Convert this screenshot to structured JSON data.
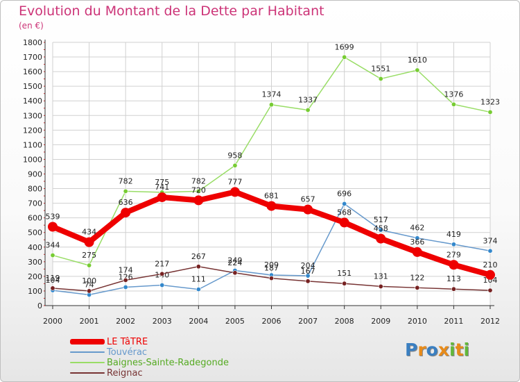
{
  "title": "Evolution du Montant de la Dette par Habitant",
  "unit": "(en €)",
  "logo_letters": [
    {
      "ch": "P",
      "color": "#3a7fc1"
    },
    {
      "ch": "r",
      "color": "#e88b1a"
    },
    {
      "ch": "o",
      "color": "#3a7fc1"
    },
    {
      "ch": "x",
      "color": "#e88b1a"
    },
    {
      "ch": "i",
      "color": "#62b83a"
    },
    {
      "ch": "t",
      "color": "#e88b1a"
    },
    {
      "ch": "i",
      "color": "#62b83a"
    }
  ],
  "chart_data": {
    "type": "line",
    "title": "Evolution du Montant de la Dette par Habitant",
    "ylabel": "(en €)",
    "xlabel": "",
    "ylim": [
      0,
      1800
    ],
    "yticks": [
      0,
      100,
      200,
      300,
      400,
      500,
      600,
      700,
      800,
      900,
      1000,
      1100,
      1200,
      1300,
      1400,
      1500,
      1600,
      1700,
      1800
    ],
    "categories": [
      "2000",
      "2001",
      "2002",
      "2003",
      "2004",
      "2005",
      "2006",
      "2007",
      "2008",
      "2009",
      "2010",
      "2011",
      "2012"
    ],
    "legend_position": "bottom-left",
    "series": [
      {
        "name": "Baignes-Sainte-Radegonde",
        "color": "#99dd66",
        "marker": "#77cc33",
        "values": [
          344,
          275,
          782,
          775,
          782,
          958,
          1374,
          1337,
          1699,
          1551,
          1610,
          1376,
          1323
        ]
      },
      {
        "name": "Touvérac",
        "color": "#6699cc",
        "marker": "#3388cc",
        "values": [
          104,
          74,
          126,
          140,
          111,
          240,
          209,
          204,
          696,
          517,
          462,
          419,
          374
        ]
      },
      {
        "name": "Reignac",
        "color": "#773333",
        "marker": "#772222",
        "values": [
          119,
          100,
          174,
          217,
          267,
          224,
          187,
          167,
          151,
          131,
          122,
          113,
          104
        ]
      },
      {
        "name": "LE TâTRE",
        "color": "#ee0000",
        "marker": "#ee0000",
        "values": [
          539,
          434,
          636,
          741,
          720,
          777,
          681,
          657,
          568,
          458,
          366,
          279,
          210
        ]
      }
    ],
    "legend_order": [
      "LE TâTRE",
      "Touvérac",
      "Baignes-Sainte-Radegonde",
      "Reignac"
    ]
  }
}
